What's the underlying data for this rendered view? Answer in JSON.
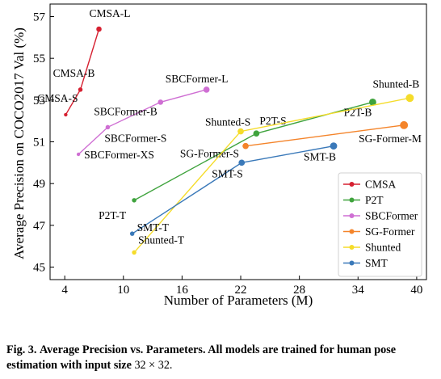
{
  "chart_data": {
    "type": "line",
    "xlabel": "Number of Parameters (M)",
    "ylabel": "Average Precision on COCO2017 Val (%)",
    "xlim": [
      2.5,
      41
    ],
    "ylim": [
      44.4,
      57.6
    ],
    "xticks": [
      4,
      10,
      16,
      22,
      28,
      34,
      40
    ],
    "yticks": [
      45,
      47,
      49,
      51,
      53,
      55,
      57
    ],
    "grid": false,
    "legend_position": "lower-right",
    "series": [
      {
        "name": "CMSA",
        "color": "#d62031",
        "points": [
          {
            "label": "CMSA-S",
            "x": 4.1,
            "y": 52.3,
            "size": 4
          },
          {
            "label": "CMSA-B",
            "x": 5.6,
            "y": 53.5,
            "size": 5
          },
          {
            "label": "CMSA-L",
            "x": 7.5,
            "y": 56.4,
            "size": 6
          }
        ]
      },
      {
        "name": "P2T",
        "color": "#3fa33d",
        "points": [
          {
            "label": "P2T-T",
            "x": 11.1,
            "y": 48.2,
            "size": 5
          },
          {
            "label": "P2T-S",
            "x": 23.6,
            "y": 51.4,
            "size": 7
          },
          {
            "label": "P2T-B",
            "x": 35.5,
            "y": 52.9,
            "size": 8
          }
        ]
      },
      {
        "name": "SBCFormer",
        "color": "#cf6fd3",
        "points": [
          {
            "label": "SBCFormer-XS",
            "x": 5.4,
            "y": 50.4,
            "size": 4
          },
          {
            "label": "SBCFormer-S",
            "x": 8.4,
            "y": 51.7,
            "size": 5
          },
          {
            "label": "SBCFormer-B",
            "x": 13.8,
            "y": 52.9,
            "size": 6
          },
          {
            "label": "SBCFormer-L",
            "x": 18.5,
            "y": 53.5,
            "size": 7
          }
        ]
      },
      {
        "name": "SG-Former",
        "color": "#f4842a",
        "points": [
          {
            "label": "SG-Former-S",
            "x": 22.5,
            "y": 50.8,
            "size": 7
          },
          {
            "label": "SG-Former-M",
            "x": 38.7,
            "y": 51.8,
            "size": 9
          }
        ]
      },
      {
        "name": "Shunted",
        "color": "#f5dc2a",
        "points": [
          {
            "label": "Shunted-T",
            "x": 11.1,
            "y": 45.7,
            "size": 5
          },
          {
            "label": "Shunted-S",
            "x": 22.0,
            "y": 51.5,
            "size": 7
          },
          {
            "label": "Shunted-B",
            "x": 39.3,
            "y": 53.1,
            "size": 9
          }
        ]
      },
      {
        "name": "SMT",
        "color": "#3a79b9",
        "points": [
          {
            "label": "SMT-T",
            "x": 10.9,
            "y": 46.6,
            "size": 5
          },
          {
            "label": "SMT-S",
            "x": 22.1,
            "y": 50.0,
            "size": 7
          },
          {
            "label": "SMT-B",
            "x": 31.5,
            "y": 50.8,
            "size": 8
          }
        ]
      }
    ]
  },
  "caption": {
    "figure_label": "Fig. 3.",
    "text": "Average Precision vs. Parameters. All models are trained for human pose estimation with input size",
    "math": "32 × 32."
  }
}
